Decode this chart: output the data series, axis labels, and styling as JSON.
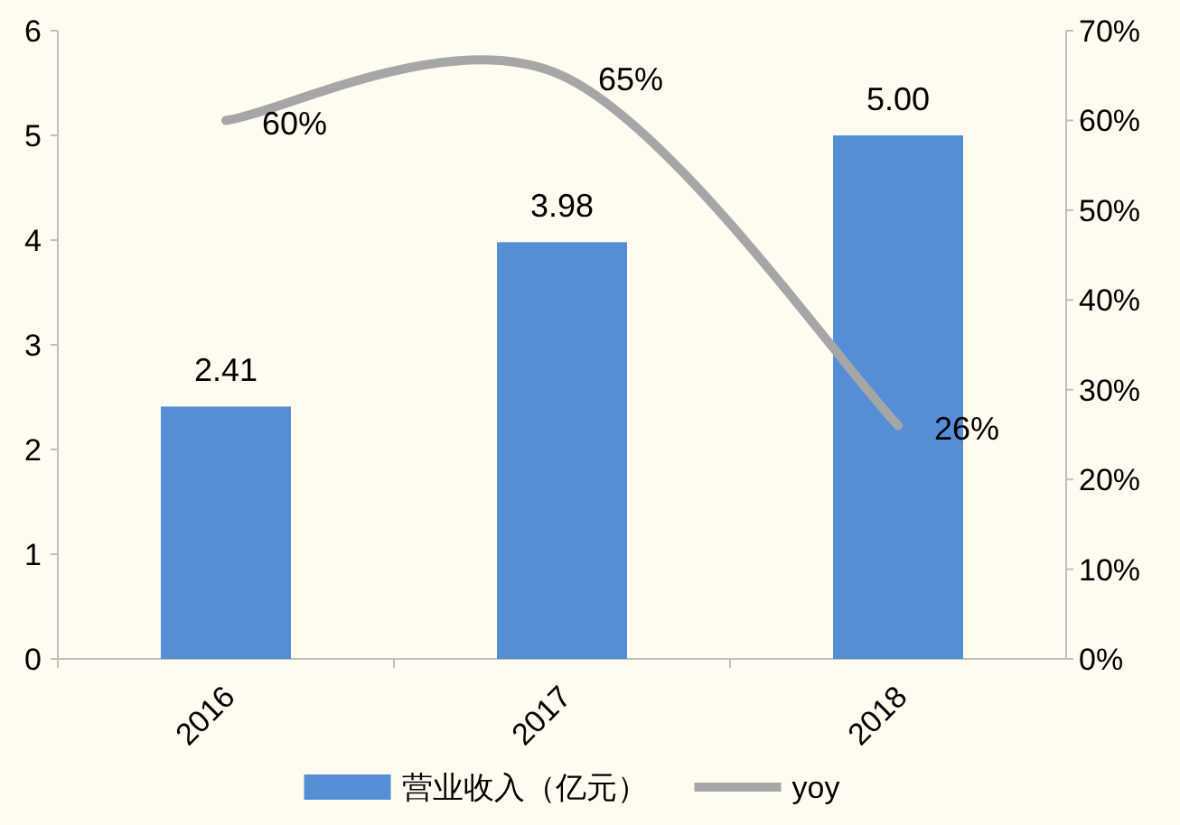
{
  "chart_data": {
    "type": "bar",
    "categories": [
      "2016",
      "2017",
      "2018"
    ],
    "series": [
      {
        "name": "营业收入（亿元）",
        "color": "#558ed5",
        "values": [
          2.41,
          3.98,
          5.0
        ],
        "value_labels": [
          "2.41",
          "3.98",
          "5.00"
        ]
      },
      {
        "name": "yoy",
        "type": "line",
        "axis": "y2",
        "color": "#a6a6a6",
        "values": [
          60,
          65,
          26
        ],
        "value_labels": [
          "60%",
          "65%",
          "26%"
        ]
      }
    ],
    "ylim": [
      0,
      6
    ],
    "yticks": [
      0,
      1,
      2,
      3,
      4,
      5,
      6
    ],
    "y2lim": [
      0,
      70
    ],
    "y2ticks": [
      {
        "value": 0,
        "label": "0%"
      },
      {
        "value": 10,
        "label": "10%"
      },
      {
        "value": 20,
        "label": "20%"
      },
      {
        "value": 30,
        "label": "30%"
      },
      {
        "value": 40,
        "label": "40%"
      },
      {
        "value": 50,
        "label": "50%"
      },
      {
        "value": 60,
        "label": "60%"
      },
      {
        "value": 70,
        "label": "70%"
      }
    ],
    "legend": "bottom",
    "grid": false,
    "marker": "none",
    "line_style": "solid"
  }
}
